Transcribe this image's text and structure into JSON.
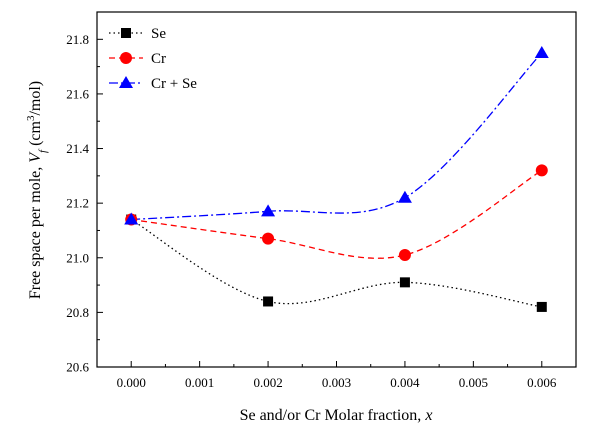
{
  "chart_data": {
    "type": "line",
    "x": [
      0.0,
      0.002,
      0.004,
      0.006
    ],
    "xlim": [
      -0.0005,
      0.0065
    ],
    "ylim": [
      20.6,
      21.9
    ],
    "xticks": [
      "0.000",
      "0.001",
      "0.002",
      "0.003",
      "0.004",
      "0.005",
      "0.006"
    ],
    "yticks": [
      "20.6",
      "20.8",
      "21.0",
      "21.2",
      "21.4",
      "21.6",
      "21.8"
    ],
    "xlabel": "Se and/or Cr Molar fraction,",
    "xlabel_var": "x",
    "ylabel": "Free space per mole,",
    "ylabel_var": "V",
    "ylabel_sub": "f",
    "ylabel_unit_prefix": " (cm",
    "ylabel_unit_sup": "3",
    "ylabel_unit_suffix": "/mol)",
    "grid": false,
    "legend_position": "top-left",
    "series": [
      {
        "name": "Se",
        "values": [
          21.14,
          20.84,
          20.91,
          20.82
        ],
        "color": "#000000",
        "marker": "square",
        "line_style": "dotted"
      },
      {
        "name": "Cr",
        "values": [
          21.14,
          21.07,
          21.01,
          21.32
        ],
        "color": "#ff0000",
        "marker": "circle",
        "line_style": "dashed"
      },
      {
        "name": "Cr + Se",
        "values": [
          21.14,
          21.17,
          21.22,
          21.75
        ],
        "color": "#0000ff",
        "marker": "triangle",
        "line_style": "dashdot"
      }
    ]
  }
}
